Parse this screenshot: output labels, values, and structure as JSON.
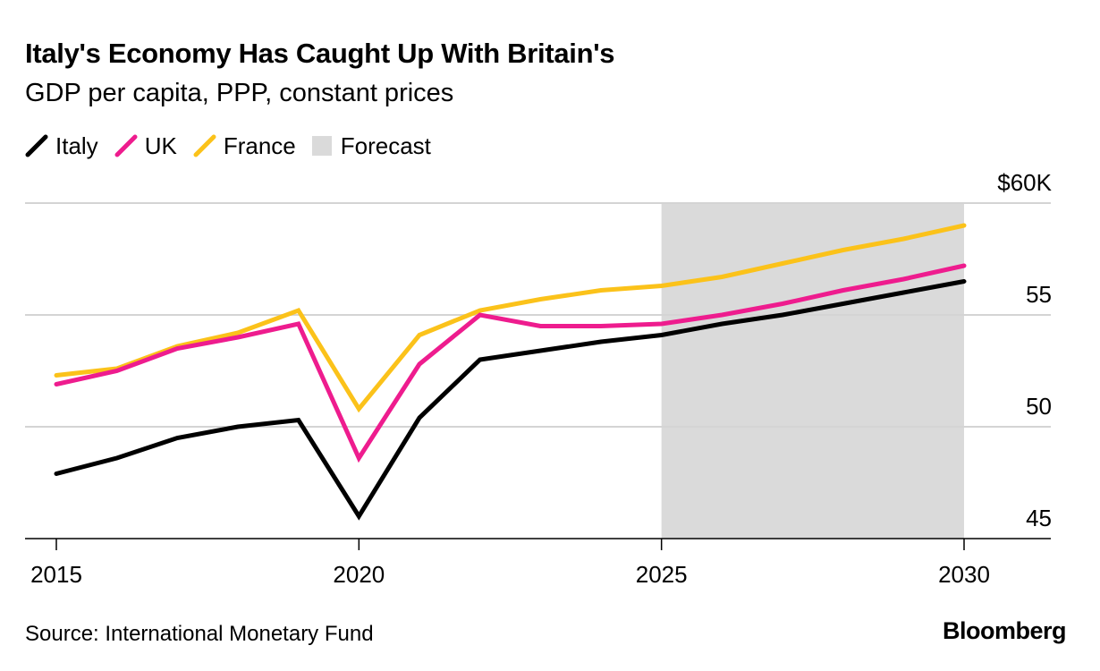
{
  "title": "Italy's Economy Has Caught Up With Britain's",
  "subtitle": "GDP per capita, PPP, constant prices",
  "legend": [
    {
      "label": "Italy",
      "color": "#000000",
      "kind": "line"
    },
    {
      "label": "UK",
      "color": "#ee1c8e",
      "kind": "line"
    },
    {
      "label": "France",
      "color": "#fbc21a",
      "kind": "line"
    },
    {
      "label": "Forecast",
      "color": "#dadada",
      "kind": "box"
    }
  ],
  "source": "Source: International Monetary Fund",
  "brand": "Bloomberg",
  "chart_data": {
    "type": "line",
    "x": [
      2015,
      2016,
      2017,
      2018,
      2019,
      2020,
      2021,
      2022,
      2023,
      2024,
      2025,
      2026,
      2027,
      2028,
      2029,
      2030
    ],
    "series": [
      {
        "name": "Italy",
        "color": "#000000",
        "values": [
          47.9,
          48.6,
          49.5,
          50.0,
          50.3,
          46.0,
          50.4,
          53.0,
          53.4,
          53.8,
          54.1,
          54.6,
          55.0,
          55.5,
          56.0,
          56.5
        ]
      },
      {
        "name": "UK",
        "color": "#ee1c8e",
        "values": [
          51.9,
          52.5,
          53.5,
          54.0,
          54.6,
          48.6,
          52.8,
          55.0,
          54.5,
          54.5,
          54.6,
          55.0,
          55.5,
          56.1,
          56.6,
          57.2
        ]
      },
      {
        "name": "France",
        "color": "#fbc21a",
        "values": [
          52.3,
          52.6,
          53.6,
          54.2,
          55.2,
          50.8,
          54.1,
          55.2,
          55.7,
          56.1,
          56.3,
          56.7,
          57.3,
          57.9,
          58.4,
          59.0
        ]
      }
    ],
    "forecast_range": [
      2025,
      2030
    ],
    "xticks": [
      2015,
      2020,
      2025,
      2030
    ],
    "xtick_labels": [
      "2015",
      "2020",
      "2025",
      "2030"
    ],
    "yticks": [
      45,
      50,
      55,
      60
    ],
    "ytick_labels": [
      "45",
      "50",
      "55",
      "$60K"
    ],
    "ylim": [
      45,
      60
    ],
    "xlim": [
      2014.5,
      2031.4
    ],
    "grid": true,
    "y_axis_side": "right",
    "legend_position": "top-left"
  }
}
